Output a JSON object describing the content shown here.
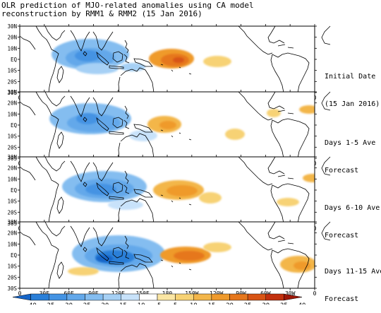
{
  "title": {
    "line1": "OLR prediction of MJO-related anomalies using CA model",
    "line2": "reconstruction by RMM1 & RMM2 (15 Jan 2016)"
  },
  "lat_labels": [
    "30N",
    "20N",
    "10N",
    "EQ",
    "10S",
    "20S",
    "30S"
  ],
  "lon_labels": [
    "0",
    "30E",
    "60E",
    "90E",
    "120E",
    "150E",
    "180",
    "150W",
    "120W",
    "90W",
    "60W",
    "30W",
    "0"
  ],
  "panels": [
    {
      "label_line1": "Initial Date",
      "label_line2": "(15 Jan 2016)"
    },
    {
      "label_line1": "Days 1-5 Ave",
      "label_line2": "Forecast"
    },
    {
      "label_line1": "Days 6-10 Ave",
      "label_line2": "Forecast"
    },
    {
      "label_line1": "Days 11-15 Ave",
      "label_line2": "Forecast"
    }
  ],
  "colorbar": {
    "ticks": [
      "-40",
      "-35",
      "-30",
      "-25",
      "-20",
      "-15",
      "-10",
      "-5",
      "5",
      "10",
      "15",
      "20",
      "25",
      "30",
      "35",
      "40"
    ],
    "colors": [
      "#1565c8",
      "#2a7fd8",
      "#4493e3",
      "#63a8ea",
      "#84bdf0",
      "#a6d0f5",
      "#c8e2fa",
      "#ffffff",
      "#fbe6a4",
      "#f7d275",
      "#f3b64a",
      "#ef9a2c",
      "#e6771c",
      "#d85414",
      "#c2300d",
      "#9e1708"
    ]
  }
}
